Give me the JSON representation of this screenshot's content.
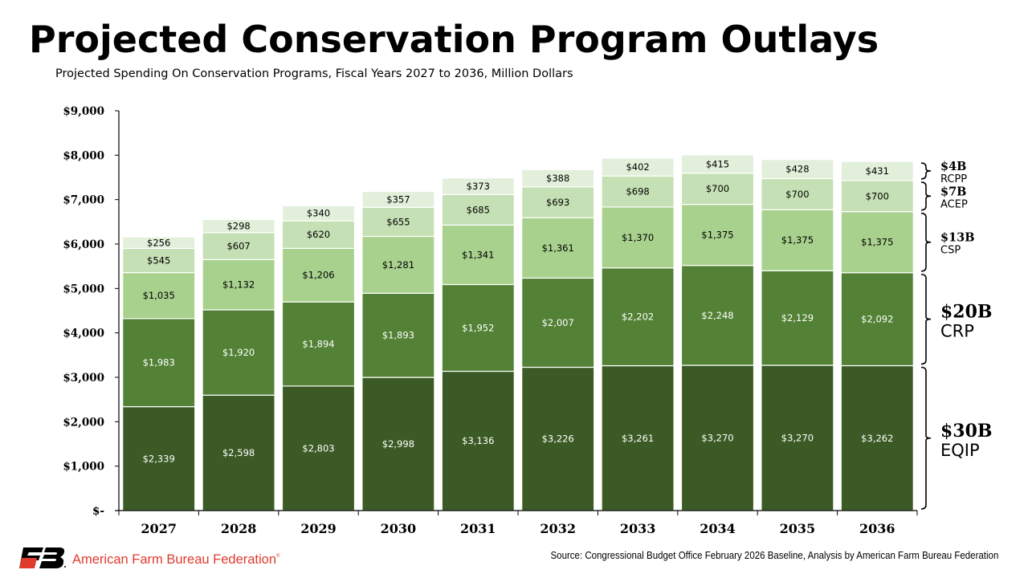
{
  "header": {
    "title": "Projected Conservation Program Outlays",
    "subtitle": "Projected Spending On Conservation Programs, Fiscal Years 2027 to 2036, Million Dollars"
  },
  "footer": {
    "logo_icon": "fb-logo-icon",
    "organization": "American Farm Bureau Federation",
    "registered_mark": "®",
    "source": "Source: Congressional Budget Office February 2026 Baseline, Analysis by American Farm Bureau Federation"
  },
  "chart_data": {
    "type": "bar",
    "stacked": true,
    "title": "Projected Conservation Program Outlays",
    "subtitle": "Projected Spending On Conservation Programs, Fiscal Years 2027 to 2036, Million Dollars",
    "xlabel": "",
    "ylabel": "",
    "ylim": [
      0,
      9000
    ],
    "yticks": [
      0,
      1000,
      2000,
      3000,
      4000,
      5000,
      6000,
      7000,
      8000,
      9000
    ],
    "ytick_labels": [
      "$-",
      "$1,000",
      "$2,000",
      "$3,000",
      "$4,000",
      "$5,000",
      "$6,000",
      "$7,000",
      "$8,000",
      "$9,000"
    ],
    "grid": false,
    "legend": "right (bracket labels)",
    "categories": [
      "2027",
      "2028",
      "2029",
      "2030",
      "2031",
      "2032",
      "2033",
      "2034",
      "2035",
      "2036"
    ],
    "series": [
      {
        "name": "EQIP",
        "color": "#3b5a25",
        "label_color": "#ffffff",
        "values": [
          2339,
          2598,
          2803,
          2998,
          3136,
          3226,
          3261,
          3270,
          3270,
          3262
        ],
        "labels": [
          "$2,339",
          "$2,598",
          "$2,803",
          "$2,998",
          "$3,136",
          "$3,226",
          "$3,261",
          "$3,270",
          "$3,270",
          "$3,262"
        ],
        "total_label": "$30B"
      },
      {
        "name": "CRP",
        "color": "#538135",
        "label_color": "#ffffff",
        "values": [
          1983,
          1920,
          1894,
          1893,
          1952,
          2007,
          2202,
          2248,
          2129,
          2092
        ],
        "labels": [
          "$1,983",
          "$1,920",
          "$1,894",
          "$1,893",
          "$1,952",
          "$2,007",
          "$2,202",
          "$2,248",
          "$2,129",
          "$2,092"
        ],
        "total_label": "$20B"
      },
      {
        "name": "CSP",
        "color": "#a9d18e",
        "label_color": "#000000",
        "values": [
          1035,
          1132,
          1206,
          1281,
          1341,
          1361,
          1370,
          1375,
          1375,
          1375
        ],
        "labels": [
          "$1,035",
          "$1,132",
          "$1,206",
          "$1,281",
          "$1,341",
          "$1,361",
          "$1,370",
          "$1,375",
          "$1,375",
          "$1,375"
        ],
        "total_label": "$13B"
      },
      {
        "name": "ACEP",
        "color": "#c5e0b4",
        "label_color": "#000000",
        "values": [
          545,
          607,
          620,
          655,
          685,
          693,
          698,
          700,
          700,
          700
        ],
        "labels": [
          "$545",
          "$607",
          "$620",
          "$655",
          "$685",
          "$693",
          "$698",
          "$700",
          "$700",
          "$700"
        ],
        "total_label": "$7B"
      },
      {
        "name": "RCPP",
        "color": "#e2efda",
        "label_color": "#000000",
        "values": [
          256,
          298,
          340,
          357,
          373,
          388,
          402,
          415,
          428,
          431
        ],
        "labels": [
          "$256",
          "$298",
          "$340",
          "$357",
          "$373",
          "$388",
          "$402",
          "$415",
          "$428",
          "$431"
        ],
        "total_label": "$4B"
      }
    ]
  }
}
